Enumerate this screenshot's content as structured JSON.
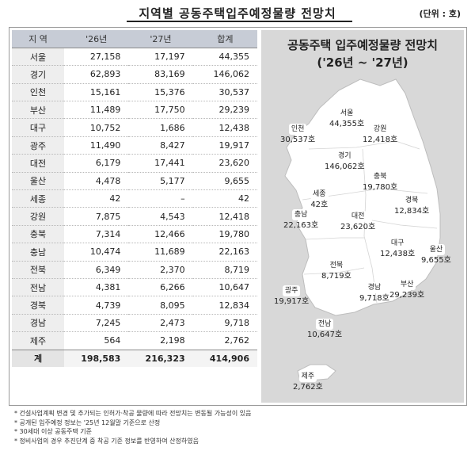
{
  "title": "지역별 공동주택입주예정물량 전망치",
  "unit": "(단위 : 호)",
  "table": {
    "headers": [
      "지 역",
      "'26년",
      "'27년",
      "합계"
    ],
    "rows": [
      [
        "서울",
        "27,158",
        "17,197",
        "44,355"
      ],
      [
        "경기",
        "62,893",
        "83,169",
        "146,062"
      ],
      [
        "인천",
        "15,161",
        "15,376",
        "30,537"
      ],
      [
        "부산",
        "11,489",
        "17,750",
        "29,239"
      ],
      [
        "대구",
        "10,752",
        "1,686",
        "12,438"
      ],
      [
        "광주",
        "11,490",
        "8,427",
        "19,917"
      ],
      [
        "대전",
        "6,179",
        "17,441",
        "23,620"
      ],
      [
        "울산",
        "4,478",
        "5,177",
        "9,655"
      ],
      [
        "세종",
        "42",
        "–",
        "42"
      ],
      [
        "강원",
        "7,875",
        "4,543",
        "12,418"
      ],
      [
        "충북",
        "7,314",
        "12,466",
        "19,780"
      ],
      [
        "충남",
        "10,474",
        "11,689",
        "22,163"
      ],
      [
        "전북",
        "6,349",
        "2,370",
        "8,719"
      ],
      [
        "전남",
        "4,381",
        "6,266",
        "10,647"
      ],
      [
        "경북",
        "4,739",
        "8,095",
        "12,834"
      ],
      [
        "경남",
        "7,245",
        "2,473",
        "9,718"
      ],
      [
        "제주",
        "564",
        "2,198",
        "2,762"
      ]
    ],
    "total": [
      "계",
      "198,583",
      "216,323",
      "414,906"
    ]
  },
  "map": {
    "title_line1": "공동주택 입주예정물량 전망치",
    "title_line2": "('26년 ~ '27년)",
    "labels": [
      {
        "name": "서울",
        "value": "44,355호"
      },
      {
        "name": "인천",
        "value": "30,537호"
      },
      {
        "name": "강원",
        "value": "12,418호"
      },
      {
        "name": "경기",
        "value": "146,062호"
      },
      {
        "name": "충북",
        "value": "19,780호"
      },
      {
        "name": "세종",
        "value": "42호"
      },
      {
        "name": "경북",
        "value": "12,834호"
      },
      {
        "name": "충남",
        "value": "22,163호"
      },
      {
        "name": "대전",
        "value": "23,620호"
      },
      {
        "name": "대구",
        "value": "12,438호"
      },
      {
        "name": "울산",
        "value": "9,655호"
      },
      {
        "name": "전북",
        "value": "8,719호"
      },
      {
        "name": "광주",
        "value": "19,917호"
      },
      {
        "name": "경남",
        "value": "9,718호"
      },
      {
        "name": "부산",
        "value": "29,239호"
      },
      {
        "name": "전남",
        "value": "10,647호"
      },
      {
        "name": "제주",
        "value": "2,762호"
      }
    ]
  },
  "footnotes": [
    "* 건설사업계획 변경 및 추가되는 인허가·착공 물량에 따라 전망치는 변동될 가능성이 있음",
    "* 공개된 입주예정 정보는 '25년 12월말 기준으로 산정",
    "* 30세대 이상 공동주택 기준",
    "* 정비사업의 경우 추진단계 중 착공 기준 정보를 반영하여 산정하였음"
  ]
}
